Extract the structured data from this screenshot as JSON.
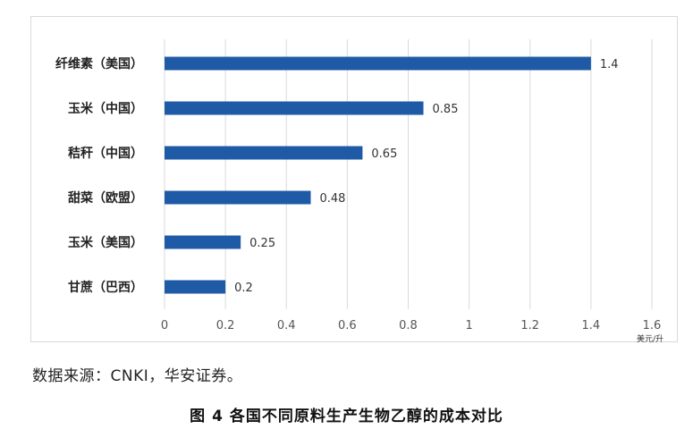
{
  "chart_data": {
    "type": "bar",
    "orientation": "horizontal",
    "categories": [
      "纤维素（美国）",
      "玉米（中国）",
      "秸秆（中国）",
      "甜菜（欧盟）",
      "玉米（美国）",
      "甘蔗（巴西）"
    ],
    "values": [
      1.4,
      0.85,
      0.65,
      0.48,
      0.25,
      0.2
    ],
    "value_labels": [
      "1.4",
      "0.85",
      "0.65",
      "0.48",
      "0.25",
      "0.2"
    ],
    "xlim": [
      0,
      1.6
    ],
    "xticks": [
      "0",
      "0.2",
      "0.4",
      "0.6",
      "0.8",
      "1",
      "1.2",
      "1.4",
      "1.6"
    ],
    "unit": "美元/升",
    "bar_color": "#1f5aa6",
    "grid": true
  },
  "source_note": "数据来源：CNKI，华安证券。",
  "caption": "图 4 各国不同原料生产生物乙醇的成本对比"
}
